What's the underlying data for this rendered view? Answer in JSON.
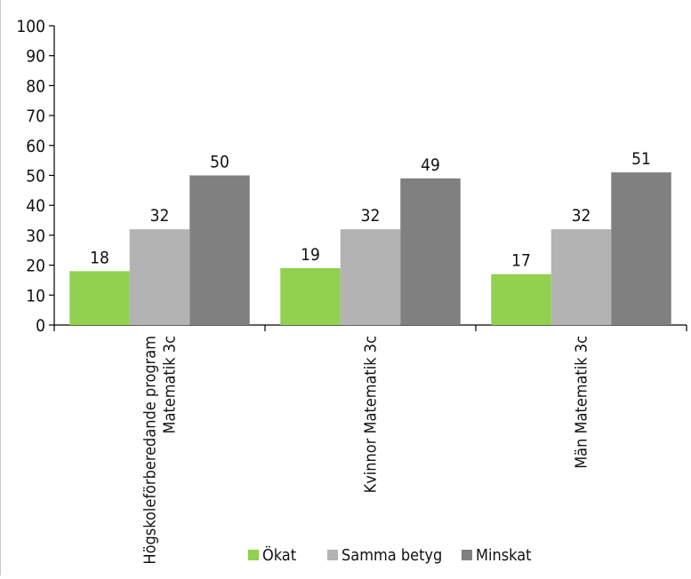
{
  "chart_data": {
    "type": "bar",
    "title": "",
    "xlabel": "",
    "ylabel": "",
    "ylim": [
      0,
      100
    ],
    "yticks": [
      0,
      10,
      20,
      30,
      40,
      50,
      60,
      70,
      80,
      90,
      100
    ],
    "grid": false,
    "legend_position": "bottom",
    "categories": [
      [
        "Högskoleförberedande program",
        "Matematik 3c"
      ],
      [
        "Kvinnor  Matematik 3c"
      ],
      [
        "Män  Matematik 3c"
      ]
    ],
    "series": [
      {
        "name": "Ökat",
        "color": "#92d050",
        "values": [
          18,
          19,
          17
        ]
      },
      {
        "name": "Samma betyg",
        "color": "#b3b3b3",
        "values": [
          32,
          32,
          32
        ]
      },
      {
        "name": "Minskat",
        "color": "#808080",
        "values": [
          50,
          49,
          51
        ]
      }
    ]
  }
}
